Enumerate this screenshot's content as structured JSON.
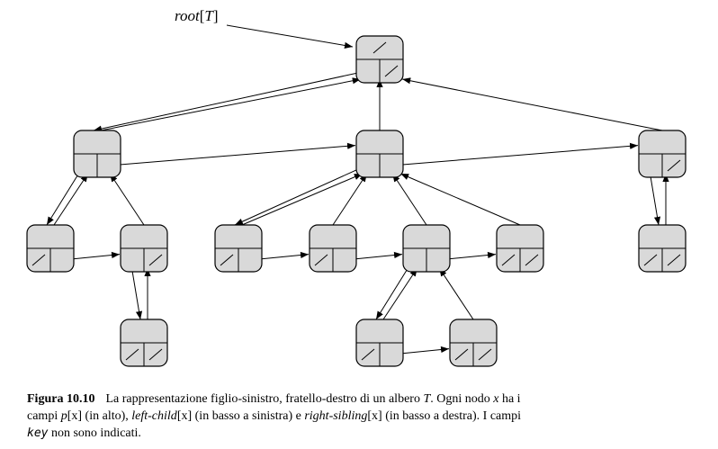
{
  "root_label": {
    "name": "root",
    "open": "[",
    "arg": "T",
    "close": "]"
  },
  "tree": {
    "nodes": [
      {
        "id": "n0",
        "parent": null
      },
      {
        "id": "n1",
        "parent": "n0"
      },
      {
        "id": "n2",
        "parent": "n0"
      },
      {
        "id": "n3",
        "parent": "n0"
      },
      {
        "id": "n4",
        "parent": "n1"
      },
      {
        "id": "n5",
        "parent": "n1"
      },
      {
        "id": "n6",
        "parent": "n5"
      },
      {
        "id": "n7",
        "parent": "n2"
      },
      {
        "id": "n8",
        "parent": "n2"
      },
      {
        "id": "n9",
        "parent": "n2"
      },
      {
        "id": "n10",
        "parent": "n2"
      },
      {
        "id": "n11",
        "parent": "n9"
      },
      {
        "id": "n12",
        "parent": "n9"
      },
      {
        "id": "n13",
        "parent": "n3"
      }
    ],
    "left_child": [
      [
        "n0",
        "n1"
      ],
      [
        "n1",
        "n4"
      ],
      [
        "n5",
        "n6"
      ],
      [
        "n2",
        "n7"
      ],
      [
        "n9",
        "n11"
      ],
      [
        "n3",
        "n13"
      ]
    ],
    "right_sibling": [
      [
        "n1",
        "n2"
      ],
      [
        "n2",
        "n3"
      ],
      [
        "n4",
        "n5"
      ],
      [
        "n7",
        "n8"
      ],
      [
        "n8",
        "n9"
      ],
      [
        "n9",
        "n10"
      ],
      [
        "n11",
        "n12"
      ]
    ]
  },
  "caption": {
    "figure_number": "Figura 10.10",
    "line1_a": "La rappresentazione figlio-sinistro, fratello-destro di un albero ",
    "line1_T": "T",
    "line1_b": ". Ogni nodo ",
    "line1_x": "x",
    "line1_c": " ha i",
    "line2_a": "campi ",
    "line2_p": "p",
    "line2_px": "[x]",
    "line2_b": " (in alto), ",
    "line2_lc": "left-child",
    "line2_lcx": "[x]",
    "line2_c": " (in basso a sinistra) e ",
    "line2_rs": "right-sibling",
    "line2_rsx": "[x]",
    "line2_d": " (in basso a destra). I campi",
    "line3_key": "key",
    "line3_rest": " non sono indicati."
  }
}
